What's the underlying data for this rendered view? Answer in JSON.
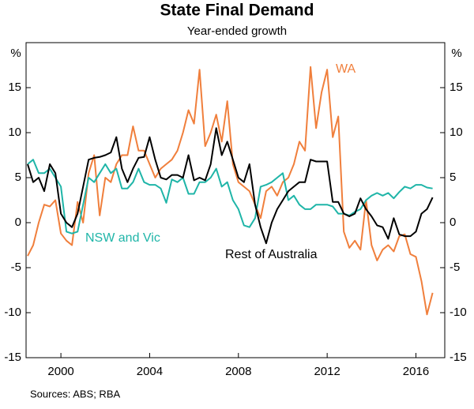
{
  "chart_data": {
    "type": "line",
    "title": "State Final Demand",
    "subtitle": "Year-ended growth",
    "y_unit_left": "%",
    "y_unit_right": "%",
    "source": "Sources:  ABS; RBA",
    "x": [
      1998.5,
      1998.75,
      1999,
      1999.25,
      1999.5,
      1999.75,
      2000,
      2000.25,
      2000.5,
      2000.75,
      2001,
      2001.25,
      2001.5,
      2001.75,
      2002,
      2002.25,
      2002.5,
      2002.75,
      2003,
      2003.25,
      2003.5,
      2003.75,
      2004,
      2004.25,
      2004.5,
      2004.75,
      2005,
      2005.25,
      2005.5,
      2005.75,
      2006,
      2006.25,
      2006.5,
      2006.75,
      2007,
      2007.25,
      2007.5,
      2007.75,
      2008,
      2008.25,
      2008.5,
      2008.75,
      2009,
      2009.25,
      2009.5,
      2009.75,
      2010,
      2010.25,
      2010.5,
      2010.75,
      2011,
      2011.25,
      2011.5,
      2011.75,
      2012,
      2012.25,
      2012.5,
      2012.75,
      2013,
      2013.25,
      2013.5,
      2013.75,
      2014,
      2014.25,
      2014.5,
      2014.75,
      2015,
      2015.25,
      2015.5,
      2015.75,
      2016,
      2016.25,
      2016.5,
      2016.75
    ],
    "series": [
      {
        "name": "WA",
        "color": "#f07f3c",
        "values": [
          -3.7,
          -2.5,
          0,
          2,
          1.8,
          2.5,
          -1.2,
          -2,
          -2.5,
          2.3,
          0,
          5.5,
          7.5,
          0.8,
          5,
          4.5,
          6.5,
          7.5,
          7.5,
          10.7,
          8,
          8,
          6.5,
          5,
          6,
          6.5,
          7,
          8,
          10,
          12.5,
          11,
          17,
          8.5,
          10,
          12,
          9,
          13.5,
          6.5,
          4.5,
          4,
          3.5,
          2,
          0.5,
          3.5,
          4,
          3,
          4.5,
          5,
          6.5,
          9,
          8,
          17.3,
          10.5,
          14.5,
          17,
          9.5,
          11.8,
          -1,
          -2.8,
          -2,
          -3,
          2.5,
          -2.5,
          -4.2,
          -3,
          -2.5,
          -3.2,
          -1.5,
          -1.3,
          -3.5,
          -3.8,
          -6.5,
          -10.2,
          -7.8
        ]
      },
      {
        "name": "NSW and Vic",
        "color": "#1fb5a8",
        "values": [
          6.5,
          7,
          5.5,
          5.5,
          6,
          5,
          4,
          -1,
          -1.2,
          -1,
          2,
          5,
          4.5,
          5.5,
          6.5,
          5.5,
          6,
          3.8,
          3.8,
          4.5,
          6,
          4.5,
          4.2,
          4.2,
          3.8,
          2.2,
          4.8,
          4.5,
          5,
          3.2,
          3.2,
          4.5,
          4.5,
          5,
          6,
          4,
          4.5,
          2.5,
          1.5,
          -0.3,
          -0.5,
          0.5,
          4,
          4.2,
          4.5,
          5,
          5.5,
          2.5,
          3,
          2,
          1.5,
          1.5,
          2,
          2,
          2,
          1.8,
          1,
          1,
          0.8,
          1.2,
          1.5,
          2.5,
          3,
          3.3,
          3,
          3.3,
          2.7,
          3.4,
          4,
          3.8,
          4.2,
          4.2,
          3.9,
          3.8
        ]
      },
      {
        "name": "Rest of Australia",
        "color": "#000000",
        "values": [
          6.5,
          4.5,
          5,
          3.5,
          6.5,
          5.5,
          1,
          0,
          -0.5,
          1,
          4,
          7,
          7.2,
          7.3,
          7.5,
          7.8,
          9.5,
          6,
          4.5,
          6,
          7.2,
          7.3,
          9.5,
          7,
          5,
          4.8,
          5.3,
          5.3,
          5,
          7.5,
          4.7,
          5,
          4.7,
          6.5,
          10.5,
          7.5,
          9,
          7,
          5,
          4.5,
          6.5,
          2,
          -0.5,
          -2.3,
          0,
          1.5,
          2.5,
          3.5,
          4,
          4.5,
          4.5,
          7,
          6.8,
          6.8,
          6.8,
          2.3,
          2.3,
          1,
          0.7,
          1,
          2.7,
          1.5,
          0.7,
          -0.3,
          -0.5,
          -1.8,
          0.5,
          -1.3,
          -1.5,
          -1.5,
          -1,
          1,
          1.5,
          2.8
        ]
      }
    ],
    "xlim": [
      1998.43,
      2017.3
    ],
    "xticks": [
      2000,
      2004,
      2008,
      2012,
      2016
    ],
    "ylim": [
      -15,
      20
    ],
    "yticks": [
      -15,
      -10,
      -5,
      0,
      5,
      10,
      15
    ],
    "grid": false
  }
}
